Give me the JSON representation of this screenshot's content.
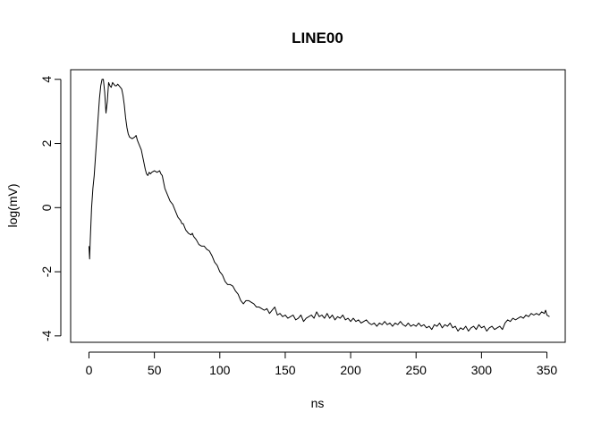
{
  "chart_data": {
    "type": "line",
    "title": "LINE00",
    "xlabel": "ns",
    "ylabel": "log(mV)",
    "xlim": [
      -14,
      364
    ],
    "ylim": [
      -4.2,
      4.3
    ],
    "xticks": [
      0,
      50,
      100,
      150,
      200,
      250,
      300,
      350
    ],
    "yticks": [
      -4,
      -2,
      0,
      2,
      4
    ],
    "grid": false,
    "legend": "none",
    "series": [
      {
        "color": "#000000",
        "points": [
          [
            0,
            -1.2
          ],
          [
            0.5,
            -1.6
          ],
          [
            1,
            -1.0
          ],
          [
            2,
            0.0
          ],
          [
            3,
            0.6
          ],
          [
            4,
            1.0
          ],
          [
            5,
            1.6
          ],
          [
            6,
            2.2
          ],
          [
            7,
            2.8
          ],
          [
            8,
            3.4
          ],
          [
            9,
            3.8
          ],
          [
            10,
            4.0
          ],
          [
            11,
            4.0
          ],
          [
            12,
            3.6
          ],
          [
            13,
            2.95
          ],
          [
            14,
            3.3
          ],
          [
            15,
            3.9
          ],
          [
            16,
            3.8
          ],
          [
            17,
            3.75
          ],
          [
            18,
            3.9
          ],
          [
            19,
            3.85
          ],
          [
            20,
            3.8
          ],
          [
            21,
            3.8
          ],
          [
            22,
            3.85
          ],
          [
            23,
            3.8
          ],
          [
            24,
            3.75
          ],
          [
            25,
            3.7
          ],
          [
            26,
            3.5
          ],
          [
            27,
            3.2
          ],
          [
            28,
            2.8
          ],
          [
            29,
            2.5
          ],
          [
            30,
            2.3
          ],
          [
            31,
            2.2
          ],
          [
            33,
            2.15
          ],
          [
            35,
            2.2
          ],
          [
            36,
            2.25
          ],
          [
            37,
            2.1
          ],
          [
            38,
            2.0
          ],
          [
            40,
            1.8
          ],
          [
            41,
            1.6
          ],
          [
            42,
            1.4
          ],
          [
            43,
            1.2
          ],
          [
            44,
            1.05
          ],
          [
            45,
            1.0
          ],
          [
            46,
            1.1
          ],
          [
            47,
            1.05
          ],
          [
            48,
            1.1
          ],
          [
            50,
            1.15
          ],
          [
            52,
            1.1
          ],
          [
            54,
            1.15
          ],
          [
            55,
            1.05
          ],
          [
            56,
            1.0
          ],
          [
            57,
            0.8
          ],
          [
            58,
            0.6
          ],
          [
            60,
            0.4
          ],
          [
            62,
            0.2
          ],
          [
            64,
            0.1
          ],
          [
            66,
            -0.1
          ],
          [
            68,
            -0.3
          ],
          [
            70,
            -0.4
          ],
          [
            71,
            -0.5
          ],
          [
            72,
            -0.5
          ],
          [
            74,
            -0.7
          ],
          [
            76,
            -0.8
          ],
          [
            78,
            -0.85
          ],
          [
            79,
            -0.8
          ],
          [
            80,
            -0.9
          ],
          [
            82,
            -1.0
          ],
          [
            84,
            -1.15
          ],
          [
            86,
            -1.2
          ],
          [
            88,
            -1.2
          ],
          [
            90,
            -1.3
          ],
          [
            92,
            -1.35
          ],
          [
            94,
            -1.5
          ],
          [
            96,
            -1.7
          ],
          [
            98,
            -1.8
          ],
          [
            100,
            -2.0
          ],
          [
            102,
            -2.1
          ],
          [
            104,
            -2.3
          ],
          [
            106,
            -2.4
          ],
          [
            108,
            -2.4
          ],
          [
            110,
            -2.45
          ],
          [
            112,
            -2.6
          ],
          [
            114,
            -2.7
          ],
          [
            116,
            -2.9
          ],
          [
            118,
            -3.0
          ],
          [
            120,
            -2.9
          ],
          [
            122,
            -2.9
          ],
          [
            124,
            -2.95
          ],
          [
            126,
            -3.0
          ],
          [
            128,
            -3.1
          ],
          [
            130,
            -3.1
          ],
          [
            132,
            -3.15
          ],
          [
            134,
            -3.2
          ],
          [
            136,
            -3.15
          ],
          [
            138,
            -3.3
          ],
          [
            140,
            -3.2
          ],
          [
            142,
            -3.1
          ],
          [
            144,
            -3.35
          ],
          [
            146,
            -3.3
          ],
          [
            148,
            -3.4
          ],
          [
            150,
            -3.35
          ],
          [
            152,
            -3.45
          ],
          [
            154,
            -3.4
          ],
          [
            156,
            -3.35
          ],
          [
            158,
            -3.5
          ],
          [
            160,
            -3.45
          ],
          [
            162,
            -3.35
          ],
          [
            164,
            -3.55
          ],
          [
            166,
            -3.45
          ],
          [
            168,
            -3.4
          ],
          [
            170,
            -3.35
          ],
          [
            172,
            -3.45
          ],
          [
            174,
            -3.25
          ],
          [
            176,
            -3.4
          ],
          [
            178,
            -3.35
          ],
          [
            180,
            -3.45
          ],
          [
            182,
            -3.3
          ],
          [
            184,
            -3.45
          ],
          [
            186,
            -3.35
          ],
          [
            188,
            -3.5
          ],
          [
            190,
            -3.4
          ],
          [
            192,
            -3.45
          ],
          [
            194,
            -3.35
          ],
          [
            196,
            -3.5
          ],
          [
            198,
            -3.45
          ],
          [
            200,
            -3.55
          ],
          [
            202,
            -3.45
          ],
          [
            204,
            -3.55
          ],
          [
            206,
            -3.5
          ],
          [
            208,
            -3.6
          ],
          [
            210,
            -3.55
          ],
          [
            212,
            -3.5
          ],
          [
            214,
            -3.6
          ],
          [
            216,
            -3.65
          ],
          [
            218,
            -3.6
          ],
          [
            220,
            -3.7
          ],
          [
            222,
            -3.6
          ],
          [
            224,
            -3.65
          ],
          [
            226,
            -3.55
          ],
          [
            228,
            -3.65
          ],
          [
            230,
            -3.6
          ],
          [
            232,
            -3.7
          ],
          [
            234,
            -3.6
          ],
          [
            236,
            -3.65
          ],
          [
            238,
            -3.55
          ],
          [
            240,
            -3.65
          ],
          [
            242,
            -3.7
          ],
          [
            244,
            -3.6
          ],
          [
            246,
            -3.7
          ],
          [
            248,
            -3.65
          ],
          [
            250,
            -3.7
          ],
          [
            252,
            -3.6
          ],
          [
            254,
            -3.7
          ],
          [
            256,
            -3.65
          ],
          [
            258,
            -3.75
          ],
          [
            260,
            -3.7
          ],
          [
            262,
            -3.8
          ],
          [
            264,
            -3.65
          ],
          [
            266,
            -3.7
          ],
          [
            268,
            -3.6
          ],
          [
            270,
            -3.75
          ],
          [
            272,
            -3.65
          ],
          [
            274,
            -3.7
          ],
          [
            276,
            -3.6
          ],
          [
            278,
            -3.75
          ],
          [
            280,
            -3.7
          ],
          [
            282,
            -3.85
          ],
          [
            284,
            -3.75
          ],
          [
            286,
            -3.8
          ],
          [
            288,
            -3.7
          ],
          [
            290,
            -3.85
          ],
          [
            292,
            -3.75
          ],
          [
            294,
            -3.7
          ],
          [
            296,
            -3.8
          ],
          [
            298,
            -3.65
          ],
          [
            300,
            -3.75
          ],
          [
            302,
            -3.7
          ],
          [
            304,
            -3.85
          ],
          [
            306,
            -3.75
          ],
          [
            308,
            -3.7
          ],
          [
            310,
            -3.8
          ],
          [
            312,
            -3.75
          ],
          [
            314,
            -3.7
          ],
          [
            316,
            -3.8
          ],
          [
            318,
            -3.6
          ],
          [
            320,
            -3.5
          ],
          [
            322,
            -3.55
          ],
          [
            324,
            -3.45
          ],
          [
            326,
            -3.5
          ],
          [
            328,
            -3.45
          ],
          [
            330,
            -3.4
          ],
          [
            332,
            -3.45
          ],
          [
            334,
            -3.35
          ],
          [
            336,
            -3.4
          ],
          [
            338,
            -3.3
          ],
          [
            340,
            -3.35
          ],
          [
            342,
            -3.3
          ],
          [
            344,
            -3.35
          ],
          [
            346,
            -3.25
          ],
          [
            348,
            -3.3
          ],
          [
            349,
            -3.2
          ],
          [
            350,
            -3.35
          ],
          [
            352,
            -3.4
          ]
        ]
      }
    ]
  }
}
